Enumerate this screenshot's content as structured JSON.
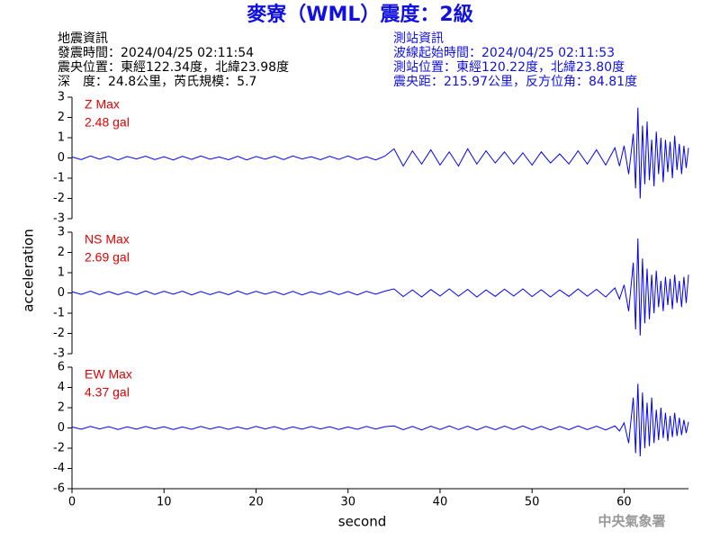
{
  "header": {
    "title": "麥寮（WML）震度：2級",
    "left": [
      "地震資訊",
      "發震時間：2024/04/25 02:11:54",
      "震央位置：東經122.34度，北緯23.98度",
      "深　度：24.8公里，芮氏規模：5.7"
    ],
    "right": [
      "測站資訊",
      "波線起始時間：2024/04/25 02:11:53",
      "測站位置：東經120.22度，北緯23.80度",
      "震央距：215.97公里，反方位角：84.81度"
    ]
  },
  "footer": "中央氣象署",
  "chart_data": [
    {
      "type": "line",
      "annotation": [
        "Z Max",
        "2.48 gal"
      ],
      "color": "#0000ff",
      "x": [
        0,
        1,
        2,
        3,
        4,
        5,
        6,
        7,
        8,
        9,
        10,
        11,
        12,
        13,
        14,
        15,
        16,
        17,
        18,
        19,
        20,
        21,
        22,
        23,
        24,
        25,
        26,
        27,
        28,
        29,
        30,
        31,
        32,
        33,
        34,
        35,
        36,
        37,
        38,
        39,
        40,
        41,
        42,
        43,
        44,
        45,
        46,
        47,
        48,
        49,
        50,
        51,
        52,
        53,
        54,
        55,
        56,
        57,
        58,
        59,
        59.5,
        60,
        60.5,
        61,
        61.25,
        61.5,
        61.75,
        62,
        62.25,
        62.5,
        62.75,
        63,
        63.25,
        63.5,
        63.75,
        64,
        64.25,
        64.5,
        64.75,
        65,
        65.25,
        65.5,
        65.75,
        66,
        66.25,
        66.5,
        66.75,
        67
      ],
      "values": [
        0.05,
        -0.08,
        0.1,
        -0.06,
        0.08,
        -0.1,
        0.07,
        -0.05,
        0.09,
        -0.08,
        0.06,
        -0.1,
        0.08,
        -0.07,
        0.1,
        -0.06,
        0.05,
        -0.09,
        0.08,
        -0.1,
        0.07,
        -0.06,
        0.09,
        -0.08,
        0.1,
        -0.05,
        0.06,
        -0.09,
        0.08,
        -0.07,
        0.1,
        -0.08,
        0.06,
        -0.1,
        0.09,
        0.45,
        -0.4,
        0.35,
        -0.3,
        0.4,
        -0.35,
        0.3,
        -0.4,
        0.45,
        -0.3,
        0.35,
        -0.25,
        0.3,
        -0.3,
        0.25,
        -0.35,
        0.3,
        -0.25,
        0.2,
        -0.3,
        0.35,
        -0.3,
        0.4,
        -0.35,
        0.5,
        -0.4,
        0.6,
        -0.8,
        1.2,
        -1.5,
        2.48,
        -2.0,
        1.6,
        -1.3,
        1.8,
        -1.1,
        0.9,
        -1.4,
        1.3,
        -0.8,
        1.0,
        -1.2,
        0.9,
        -0.7,
        0.8,
        -1.0,
        1.1,
        -0.6,
        0.7,
        -0.8,
        0.6,
        -0.5,
        0.5
      ],
      "xlim": [
        0,
        67
      ],
      "ylim": [
        -3,
        3
      ],
      "yticks": [
        -3,
        -2,
        -1,
        0,
        1,
        2,
        3
      ]
    },
    {
      "type": "line",
      "annotation": [
        "NS Max",
        "2.69 gal"
      ],
      "color": "#0000ff",
      "ylabel": "acceleration",
      "x": [
        0,
        1,
        2,
        3,
        4,
        5,
        6,
        7,
        8,
        9,
        10,
        11,
        12,
        13,
        14,
        15,
        16,
        17,
        18,
        19,
        20,
        21,
        22,
        23,
        24,
        25,
        26,
        27,
        28,
        29,
        30,
        31,
        32,
        33,
        34,
        35,
        36,
        37,
        38,
        39,
        40,
        41,
        42,
        43,
        44,
        45,
        46,
        47,
        48,
        49,
        50,
        51,
        52,
        53,
        54,
        55,
        56,
        57,
        58,
        59,
        59.5,
        60,
        60.5,
        61,
        61.25,
        61.5,
        61.75,
        62,
        62.25,
        62.5,
        62.75,
        63,
        63.25,
        63.5,
        63.75,
        64,
        64.25,
        64.5,
        64.75,
        65,
        65.25,
        65.5,
        65.75,
        66,
        66.25,
        66.5,
        66.75,
        67
      ],
      "values": [
        0.06,
        -0.07,
        0.09,
        -0.08,
        0.07,
        -0.09,
        0.06,
        -0.08,
        0.1,
        -0.07,
        0.08,
        -0.06,
        0.09,
        -0.1,
        0.07,
        -0.08,
        0.06,
        -0.09,
        0.1,
        -0.07,
        0.08,
        -0.06,
        0.07,
        -0.09,
        0.08,
        -0.1,
        0.06,
        -0.07,
        0.09,
        -0.08,
        0.07,
        -0.1,
        0.08,
        -0.06,
        0.09,
        0.2,
        -0.18,
        0.15,
        -0.2,
        0.17,
        -0.15,
        0.2,
        -0.16,
        0.18,
        -0.2,
        0.15,
        -0.17,
        0.19,
        -0.15,
        0.2,
        -0.18,
        0.16,
        -0.2,
        0.15,
        -0.17,
        0.2,
        -0.16,
        0.18,
        -0.2,
        0.25,
        -0.3,
        0.4,
        -0.9,
        1.5,
        -1.8,
        2.69,
        -2.1,
        1.7,
        -1.5,
        1.2,
        -1.3,
        0.9,
        -1.0,
        1.1,
        -0.7,
        0.6,
        -0.9,
        0.8,
        -0.6,
        0.7,
        -0.8,
        0.9,
        -0.5,
        0.6,
        -0.7,
        0.8,
        -0.5,
        0.9
      ],
      "xlim": [
        0,
        67
      ],
      "ylim": [
        -3,
        3
      ],
      "yticks": [
        -3,
        -2,
        -1,
        0,
        1,
        2,
        3
      ]
    },
    {
      "type": "line",
      "annotation": [
        "EW Max",
        "4.37 gal"
      ],
      "color": "#0000ff",
      "xlabel": "second",
      "x": [
        0,
        1,
        2,
        3,
        4,
        5,
        6,
        7,
        8,
        9,
        10,
        11,
        12,
        13,
        14,
        15,
        16,
        17,
        18,
        19,
        20,
        21,
        22,
        23,
        24,
        25,
        26,
        27,
        28,
        29,
        30,
        31,
        32,
        33,
        34,
        35,
        36,
        37,
        38,
        39,
        40,
        41,
        42,
        43,
        44,
        45,
        46,
        47,
        48,
        49,
        50,
        51,
        52,
        53,
        54,
        55,
        56,
        57,
        58,
        59,
        59.5,
        60,
        60.5,
        61,
        61.25,
        61.5,
        61.75,
        62,
        62.25,
        62.5,
        62.75,
        63,
        63.25,
        63.5,
        63.75,
        64,
        64.25,
        64.5,
        64.75,
        65,
        65.25,
        65.5,
        65.75,
        66,
        66.25,
        66.5,
        66.75,
        67
      ],
      "values": [
        0.1,
        -0.12,
        0.15,
        -0.1,
        0.13,
        -0.15,
        0.11,
        -0.12,
        0.14,
        -0.1,
        0.12,
        -0.15,
        0.1,
        -0.13,
        0.15,
        -0.11,
        0.12,
        -0.14,
        0.1,
        -0.12,
        0.15,
        -0.1,
        0.13,
        -0.15,
        0.11,
        -0.12,
        0.14,
        -0.1,
        0.12,
        -0.15,
        0.1,
        -0.13,
        0.15,
        -0.11,
        0.12,
        0.2,
        -0.18,
        0.15,
        -0.2,
        0.17,
        -0.15,
        0.2,
        -0.16,
        0.18,
        -0.2,
        0.15,
        -0.17,
        0.19,
        -0.15,
        0.2,
        -0.18,
        0.16,
        -0.2,
        0.15,
        -0.17,
        0.2,
        -0.16,
        0.18,
        -0.2,
        0.2,
        -0.3,
        0.5,
        -1.5,
        3.0,
        -2.5,
        4.37,
        -2.8,
        3.5,
        -2.0,
        2.5,
        -1.8,
        3.0,
        -1.5,
        1.8,
        -1.2,
        2.0,
        -1.0,
        1.5,
        -1.3,
        1.2,
        -0.9,
        1.5,
        -0.8,
        1.0,
        -0.7,
        0.8,
        -0.5,
        0.6
      ],
      "xlim": [
        0,
        67
      ],
      "ylim": [
        -6,
        6
      ],
      "yticks": [
        -6,
        -4,
        -2,
        0,
        2,
        4,
        6
      ],
      "xticks": [
        0,
        10,
        20,
        30,
        40,
        50,
        60
      ]
    }
  ]
}
